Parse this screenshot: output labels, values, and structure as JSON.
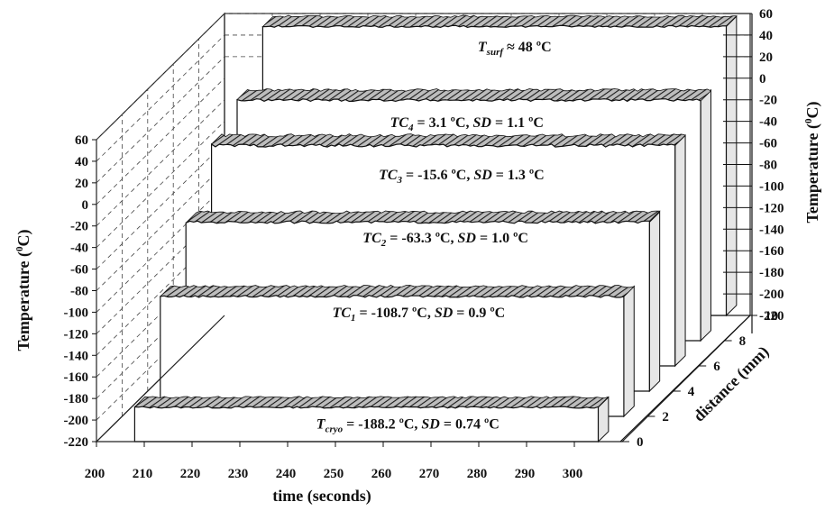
{
  "chart_data": {
    "type": "area",
    "title": "",
    "xlabel": "time (seconds)",
    "ylabel": "Temperature (°C)",
    "zlabel": "distance (mm)",
    "x_ticks": [
      "200",
      "210",
      "220",
      "230",
      "240",
      "250",
      "260",
      "270",
      "280",
      "290",
      "300"
    ],
    "xlim": [
      200,
      310
    ],
    "left_y_ticks": [
      "60",
      "40",
      "20",
      "0",
      "-20",
      "-40",
      "-60",
      "-80",
      "-100",
      "-120",
      "-140",
      "-160",
      "-180",
      "-200",
      "-220"
    ],
    "right_y_ticks": [
      "60",
      "40",
      "20",
      "0",
      "-20",
      "-40",
      "-60",
      "-80",
      "-100",
      "-120",
      "-140",
      "-160",
      "-180",
      "-200",
      "-220"
    ],
    "ylim": [
      -220,
      60
    ],
    "z_ticks": [
      "0",
      "2",
      "4",
      "6",
      "8",
      "10"
    ],
    "zlim": [
      0,
      10
    ],
    "grid": true,
    "series": [
      {
        "name": "T_cryo",
        "distance_mm": 0,
        "mean": -188.2,
        "sd": 0.74
      },
      {
        "name": "TC_1",
        "distance_mm": 2,
        "mean": -108.7,
        "sd": 0.9
      },
      {
        "name": "TC_2",
        "distance_mm": 4,
        "mean": -63.3,
        "sd": 1.0
      },
      {
        "name": "TC_3",
        "distance_mm": 6,
        "mean": -15.6,
        "sd": 1.3
      },
      {
        "name": "TC_4",
        "distance_mm": 8,
        "mean": 3.1,
        "sd": 1.1
      },
      {
        "name": "T_surf",
        "distance_mm": 10,
        "mean": 48,
        "sd": null
      }
    ],
    "annotations": [
      {
        "id": "tsurf",
        "var": "T",
        "sub": "surf",
        "rest": " ≈ 48 ºC",
        "sd": ""
      },
      {
        "id": "tc4",
        "var": "TC",
        "sub": "4",
        "rest": " = 3.1 ºC,  ",
        "sd": " = 1.1 ºC"
      },
      {
        "id": "tc3",
        "var": "TC",
        "sub": "3",
        "rest": " = -15.6 ºC,  ",
        "sd": " = 1.3 ºC"
      },
      {
        "id": "tc2",
        "var": "TC",
        "sub": "2",
        "rest": " = -63.3 ºC,  ",
        "sd": " = 1.0 ºC"
      },
      {
        "id": "tc1",
        "var": "TC",
        "sub": "1",
        "rest": " = -108.7 ºC,  ",
        "sd": " = 0.9 ºC"
      },
      {
        "id": "tcryo",
        "var": "T",
        "sub": "cryo",
        "rest": " = -188.2 ºC,  ",
        "sd": " = 0.74 ºC"
      }
    ],
    "sd_label": "SD",
    "temp_axis_word": "Temperature (",
    "temp_axis_unit": "C)",
    "temp_axis_sup": "0"
  }
}
